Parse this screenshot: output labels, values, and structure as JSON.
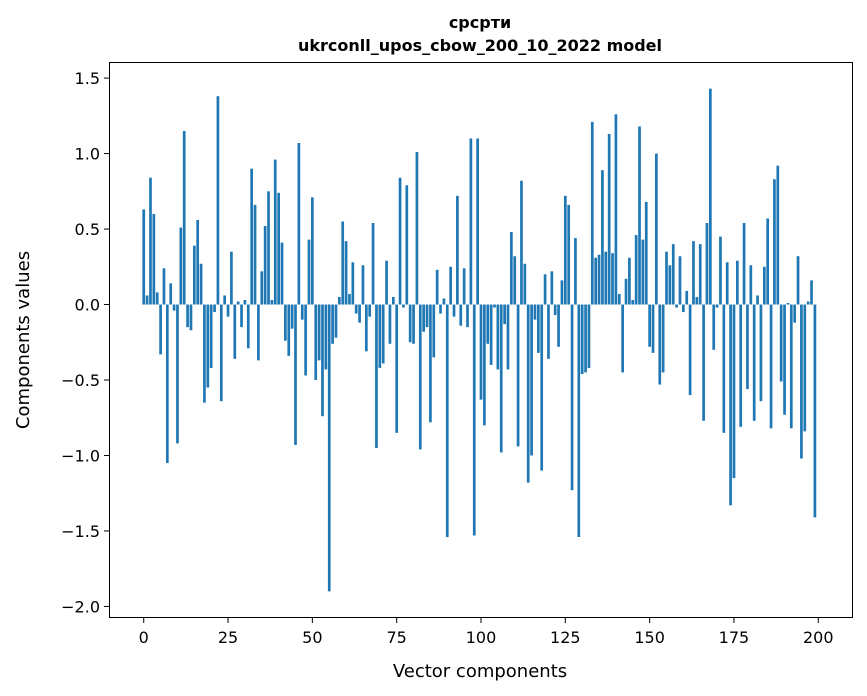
{
  "chart_data": {
    "type": "bar",
    "title_line1": "срсрти",
    "title_line2": "ukrconll_upos_cbow_200_10_2022 model",
    "xlabel": "Vector components",
    "ylabel": "Components values",
    "xlim": [
      -10,
      210
    ],
    "ylim": [
      -2.07,
      1.6
    ],
    "xticks": [
      0,
      25,
      50,
      75,
      100,
      125,
      150,
      175,
      200
    ],
    "xtick_labels": [
      "0",
      "25",
      "50",
      "75",
      "100",
      "125",
      "150",
      "175",
      "200"
    ],
    "yticks": [
      -2.0,
      -1.5,
      -1.0,
      -0.5,
      0.0,
      0.5,
      1.0,
      1.5
    ],
    "ytick_labels": [
      "−2.0",
      "−1.5",
      "−1.0",
      "−0.5",
      "0.0",
      "0.5",
      "1.0",
      "1.5"
    ],
    "bar_color": "#1f77b4",
    "grid": false,
    "x": [
      0,
      1,
      2,
      3,
      4,
      5,
      6,
      7,
      8,
      9,
      10,
      11,
      12,
      13,
      14,
      15,
      16,
      17,
      18,
      19,
      20,
      21,
      22,
      23,
      24,
      25,
      26,
      27,
      28,
      29,
      30,
      31,
      32,
      33,
      34,
      35,
      36,
      37,
      38,
      39,
      40,
      41,
      42,
      43,
      44,
      45,
      46,
      47,
      48,
      49,
      50,
      51,
      52,
      53,
      54,
      55,
      56,
      57,
      58,
      59,
      60,
      61,
      62,
      63,
      64,
      65,
      66,
      67,
      68,
      69,
      70,
      71,
      72,
      73,
      74,
      75,
      76,
      77,
      78,
      79,
      80,
      81,
      82,
      83,
      84,
      85,
      86,
      87,
      88,
      89,
      90,
      91,
      92,
      93,
      94,
      95,
      96,
      97,
      98,
      99,
      100,
      101,
      102,
      103,
      104,
      105,
      106,
      107,
      108,
      109,
      110,
      111,
      112,
      113,
      114,
      115,
      116,
      117,
      118,
      119,
      120,
      121,
      122,
      123,
      124,
      125,
      126,
      127,
      128,
      129,
      130,
      131,
      132,
      133,
      134,
      135,
      136,
      137,
      138,
      139,
      140,
      141,
      142,
      143,
      144,
      145,
      146,
      147,
      148,
      149,
      150,
      151,
      152,
      153,
      154,
      155,
      156,
      157,
      158,
      159,
      160,
      161,
      162,
      163,
      164,
      165,
      166,
      167,
      168,
      169,
      170,
      171,
      172,
      173,
      174,
      175,
      176,
      177,
      178,
      179,
      180,
      181,
      182,
      183,
      184,
      185,
      186,
      187,
      188,
      189,
      190,
      191,
      192,
      193,
      194,
      195,
      196,
      197,
      198,
      199
    ],
    "values": [
      0.63,
      0.06,
      0.84,
      0.6,
      0.08,
      -0.33,
      0.24,
      -1.05,
      0.14,
      -0.04,
      -0.92,
      0.51,
      1.15,
      -0.15,
      -0.17,
      0.39,
      0.56,
      0.27,
      -0.65,
      -0.55,
      -0.42,
      -0.05,
      1.38,
      -0.64,
      0.06,
      -0.08,
      0.35,
      -0.36,
      0.02,
      -0.15,
      0.03,
      -0.29,
      0.9,
      0.66,
      -0.37,
      0.22,
      0.52,
      0.75,
      0.03,
      0.96,
      0.74,
      0.41,
      -0.24,
      -0.34,
      -0.16,
      -0.93,
      1.07,
      -0.1,
      -0.47,
      0.43,
      0.71,
      -0.5,
      -0.37,
      -0.74,
      -0.43,
      -1.9,
      -0.26,
      -0.22,
      0.05,
      0.55,
      0.42,
      0.07,
      0.28,
      -0.06,
      -0.12,
      0.26,
      -0.31,
      -0.08,
      0.54,
      -0.95,
      -0.42,
      -0.39,
      0.29,
      -0.26,
      0.05,
      -0.85,
      0.84,
      -0.02,
      0.79,
      -0.25,
      -0.26,
      1.01,
      -0.96,
      -0.18,
      -0.15,
      -0.78,
      -0.35,
      0.23,
      -0.06,
      0.04,
      -1.54,
      0.25,
      -0.08,
      0.72,
      -0.14,
      0.24,
      -0.15,
      1.1,
      -1.53,
      1.1,
      -0.63,
      -0.8,
      -0.26,
      -0.4,
      -0.02,
      -0.43,
      -0.98,
      -0.13,
      -0.43,
      0.48,
      0.32,
      -0.94,
      0.82,
      0.27,
      -1.18,
      -1.0,
      -0.1,
      -0.32,
      -1.1,
      0.2,
      -0.36,
      0.22,
      -0.07,
      -0.28,
      0.16,
      0.72,
      0.66,
      -1.23,
      0.44,
      -1.54,
      -0.46,
      -0.45,
      -0.42,
      1.21,
      0.31,
      0.33,
      0.89,
      0.35,
      1.13,
      0.34,
      1.26,
      0.07,
      -0.45,
      0.17,
      0.31,
      0.03,
      0.46,
      1.18,
      0.43,
      0.68,
      -0.28,
      -0.32,
      1.0,
      -0.53,
      -0.45,
      0.35,
      0.26,
      0.4,
      -0.02,
      0.32,
      -0.05,
      0.09,
      -0.6,
      0.42,
      0.05,
      0.4,
      -0.77,
      0.54,
      1.43,
      -0.3,
      -0.02,
      0.45,
      -0.85,
      0.28,
      -1.33,
      -1.15,
      0.29,
      -0.81,
      0.54,
      -0.56,
      0.26,
      -0.77,
      0.06,
      -0.64,
      0.25,
      0.57,
      -0.82,
      0.83,
      0.92,
      -0.51,
      -0.73,
      0.01,
      -0.82,
      -0.12,
      0.32,
      -1.02,
      -0.84,
      0.02,
      0.16,
      -1.41
    ]
  }
}
